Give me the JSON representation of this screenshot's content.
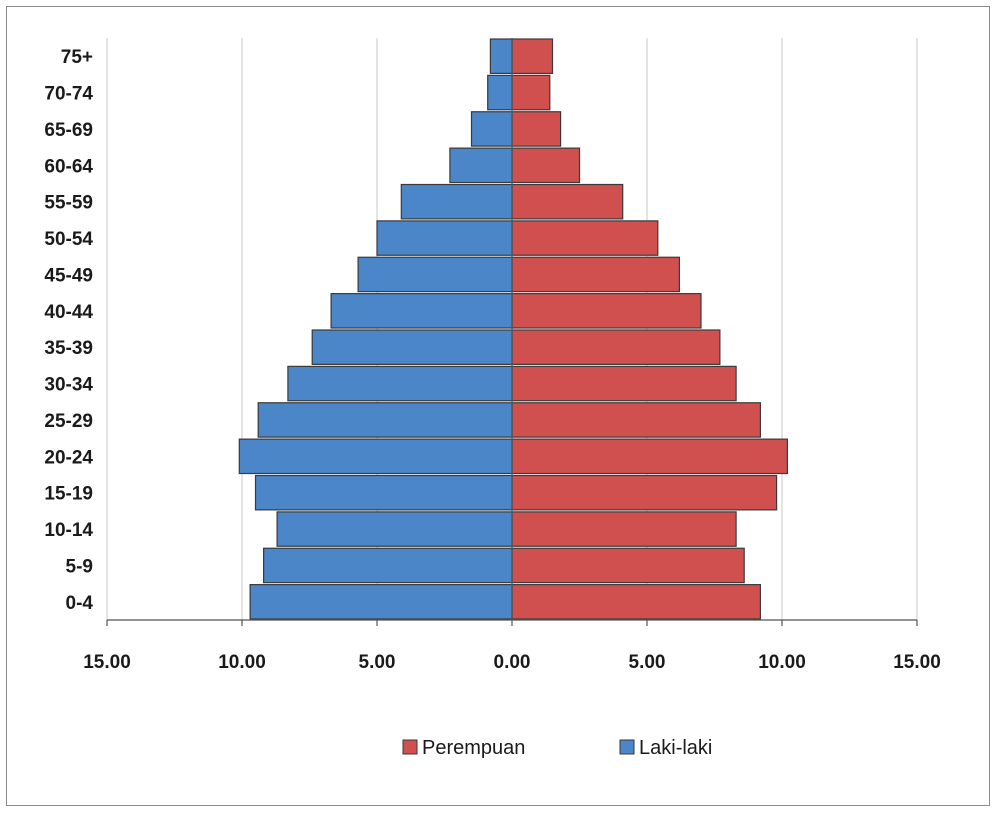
{
  "chart_data": {
    "type": "bar",
    "orientation": "horizontal",
    "subtype": "population-pyramid",
    "categories": [
      "0-4",
      "5-9",
      "10-14",
      "15-19",
      "20-24",
      "25-29",
      "30-34",
      "35-39",
      "40-44",
      "45-49",
      "50-54",
      "55-59",
      "60-64",
      "65-69",
      "70-74",
      "75+"
    ],
    "series": [
      {
        "name": "Perempuan",
        "side": "right",
        "color": "#d05050",
        "values": [
          9.2,
          8.6,
          8.3,
          9.8,
          10.2,
          9.2,
          8.3,
          7.7,
          7.0,
          6.2,
          5.4,
          4.1,
          2.5,
          1.8,
          1.4,
          1.5
        ]
      },
      {
        "name": "Laki-laki",
        "side": "left",
        "color": "#4a86c8",
        "values": [
          9.7,
          9.2,
          8.7,
          9.5,
          10.1,
          9.4,
          8.3,
          7.4,
          6.7,
          5.7,
          5.0,
          4.1,
          2.3,
          1.5,
          0.9,
          0.8
        ]
      }
    ],
    "xlim": [
      -15,
      15
    ],
    "xticks": [
      -15,
      -10,
      -5,
      0,
      5,
      10,
      15
    ],
    "xtick_labels": [
      "15.00",
      "10.00",
      "5.00",
      "0.00",
      "5.00",
      "10.00",
      "15.00"
    ],
    "grid": "vertical",
    "legend": {
      "position": "bottom",
      "order": [
        "Perempuan",
        "Laki-laki"
      ]
    }
  }
}
